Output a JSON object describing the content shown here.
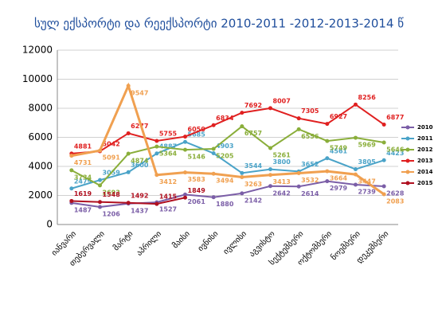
{
  "chart_data": {
    "type": "line",
    "title": "სულ  ექსპორტი და რეექსპორტი 2010-2011 -2012-2013-2014 წ",
    "categories": [
      "იანვარი",
      "თებერვალი",
      "მარტი",
      "აპრილი",
      "მაისი",
      "ივნისი",
      "ივლისი",
      "აგვისტო",
      "სექტემბერი",
      "ოქტომბერი",
      "ნოემბერი",
      "დეკემბერი"
    ],
    "series": [
      {
        "name": "2010",
        "color": "#7b5ea7",
        "values": [
          1487,
          1206,
          1437,
          1527,
          2061,
          1880,
          2142,
          2642,
          2614,
          2979,
          2739,
          2628
        ]
      },
      {
        "name": "2011",
        "color": "#4aa3c8",
        "values": [
          2479,
          3059,
          3600,
          4887,
          5685,
          4903,
          3544,
          3800,
          3652,
          4561,
          3805,
          4423
        ]
      },
      {
        "name": "2012",
        "color": "#8aae3a",
        "values": [
          3734,
          2693,
          4874,
          5364,
          5146,
          5205,
          6757,
          5261,
          6556,
          5749,
          5969,
          5646
        ]
      },
      {
        "name": "2013",
        "color": "#e02020",
        "values": [
          4881,
          5042,
          6277,
          5755,
          6050,
          6834,
          7692,
          8007,
          7305,
          6927,
          8256,
          6877
        ]
      },
      {
        "name": "2014",
        "color": "#f0a050",
        "values": [
          4731,
          5091,
          9547,
          3412,
          3583,
          3494,
          3263,
          3413,
          3532,
          3664,
          3447,
          2083
        ]
      },
      {
        "name": "2015",
        "color": "#b01020",
        "values": [
          1619,
          1548,
          1492,
          1415,
          1849,
          null,
          null,
          null,
          null,
          null,
          null,
          null
        ]
      }
    ],
    "ylim": [
      0,
      12000
    ],
    "yticks": [
      0,
      2000,
      4000,
      6000,
      8000,
      10000,
      12000
    ],
    "grid": true,
    "legend": "right"
  }
}
